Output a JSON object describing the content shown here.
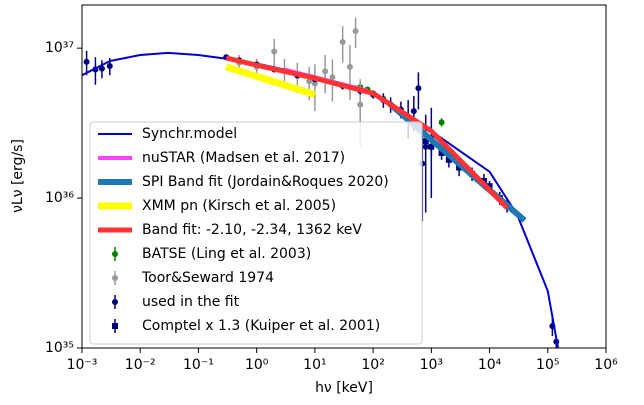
{
  "chart_data": {
    "type": "line",
    "xlabel": "hν [keV]",
    "ylabel": "νLν [erg/s]",
    "xscale": "log",
    "yscale": "log",
    "xlim": [
      0.001,
      1000000
    ],
    "ylim": [
      1e+35,
      1.94e+37
    ],
    "xticks": [
      {
        "value": 0.001,
        "label": "10⁻³"
      },
      {
        "value": 0.01,
        "label": "10⁻²"
      },
      {
        "value": 0.1,
        "label": "10⁻¹"
      },
      {
        "value": 1,
        "label": "10⁰"
      },
      {
        "value": 10,
        "label": "10¹"
      },
      {
        "value": 100,
        "label": "10²"
      },
      {
        "value": 1000,
        "label": "10³"
      },
      {
        "value": 10000,
        "label": "10⁴"
      },
      {
        "value": 100000,
        "label": "10⁵"
      },
      {
        "value": 1000000,
        "label": "10⁶"
      }
    ],
    "yticks": [
      {
        "value": 1e+35,
        "label": "10³⁵"
      },
      {
        "value": 1e+36,
        "label": "10³⁶"
      },
      {
        "value": 1e+37,
        "label": "10³⁷"
      }
    ],
    "legend": "lower left",
    "series": [
      {
        "name": "Synchr.model",
        "color": "#0000cc",
        "kind": "line",
        "width": 2,
        "x": [
          0.001,
          0.003,
          0.01,
          0.03,
          0.1,
          0.3,
          1,
          10,
          100,
          1000,
          10000,
          30000,
          100000,
          150000
        ],
        "values": [
          6.6e+36,
          8.2e+36,
          9e+36,
          9.3e+36,
          9e+36,
          8.5e+36,
          7.9e+36,
          6.5e+36,
          4.9e+36,
          2.8e+36,
          1.5e+36,
          7.7e+35,
          2.4e+35,
          1e+35
        ]
      },
      {
        "name": "nuSTAR (Madsen et al. 2017)",
        "color": "#ff44ff",
        "kind": "line",
        "width": 4,
        "x": [
          3,
          80
        ],
        "values": [
          7.2e+36,
          5.2e+36
        ]
      },
      {
        "name": "SPI Band fit (Jordain&Roques 2020)",
        "color": "#1f77b4",
        "kind": "line",
        "width": 6,
        "x": [
          200,
          40000
        ],
        "values": [
          4.2e+36,
          7.1e+35
        ]
      },
      {
        "name": "XMM pn (Kirsch et al. 2005)",
        "color": "#ffff00",
        "kind": "line",
        "width": 7,
        "x": [
          0.3,
          10
        ],
        "values": [
          7.5e+36,
          4.9e+36
        ]
      },
      {
        "name": "Band fit: -2.10, -2.34, 1362 keV",
        "color": "#ff3333",
        "kind": "line",
        "width": 5,
        "x": [
          0.3,
          1,
          10,
          100,
          1000,
          20000
        ],
        "values": [
          8.6e+36,
          7.7e+36,
          6.3e+36,
          5e+36,
          2.8e+36,
          8.6e+35
        ]
      },
      {
        "name": "BATSE (Ling et al. 2003)",
        "color": "#008000",
        "kind": "errorbar",
        "marker": "circle",
        "x": [
          30,
          40,
          50,
          60,
          80,
          100,
          150,
          1500
        ],
        "values": [
          5.6e+36,
          5.5e+36,
          5.4e+36,
          5.5e+36,
          5.3e+36,
          5e+36,
          4.6e+36,
          3.2e+36
        ],
        "errors": [
          2e+35,
          2e+35,
          2e+35,
          2e+35,
          2e+35,
          2e+35,
          2e+35,
          2e+35
        ]
      },
      {
        "name": "Toor&Seward 1974",
        "color": "#999999",
        "kind": "errorbar",
        "marker": "circle",
        "x": [
          0.5,
          1,
          2,
          3,
          5,
          8,
          10,
          15,
          20,
          30,
          40,
          50,
          60
        ],
        "values": [
          8e+36,
          7.5e+36,
          9.5e+36,
          7e+36,
          6.5e+36,
          6e+36,
          5.8e+36,
          7e+36,
          6.4e+36,
          1.1e+37,
          7.5e+36,
          1.3e+37,
          4.2e+36
        ],
        "errors": [
          1e+36,
          1e+36,
          2e+36,
          1.5e+36,
          1.5e+36,
          1.5e+36,
          2e+36,
          2e+36,
          2e+36,
          3e+36,
          3e+36,
          3e+36,
          2e+36
        ]
      },
      {
        "name": "used in the fit",
        "color": "#00007a",
        "kind": "errorbar",
        "marker": "circle",
        "x": [
          0.0012,
          0.0017,
          0.0022,
          0.003,
          0.3,
          0.5,
          1,
          2,
          5,
          10,
          30,
          60,
          100,
          150,
          200,
          300,
          400,
          500,
          600,
          700,
          800,
          1000,
          120000,
          140000
        ],
        "values": [
          8.1e+36,
          7.2e+36,
          7.3e+36,
          7.6e+36,
          8.7e+36,
          8.3e+36,
          7.8e+36,
          7.2e+36,
          6.6e+36,
          6.2e+36,
          5.6e+36,
          5.2e+36,
          4.9e+36,
          4.5e+36,
          4.2e+36,
          3.9e+36,
          3.5e+36,
          3.8e+36,
          5.4e+36,
          1.7e+36,
          2.2e+36,
          2.5e+36,
          1.4e+35,
          1.1e+35
        ],
        "errors": [
          1.5e+36,
          1.5e+36,
          1e+36,
          1e+36,
          3e+35,
          3e+35,
          3e+35,
          3e+35,
          3e+35,
          3e+35,
          3e+35,
          3e+35,
          3e+35,
          5e+35,
          5e+35,
          5e+35,
          1e+36,
          1e+36,
          1.5e+36,
          1e+36,
          1.4e+36,
          1.5e+36,
          2e+34,
          1e+34
        ]
      },
      {
        "name": "Comptel x 1.3 (Kuiper et al. 2001)",
        "color": "#00007a",
        "kind": "errorbar",
        "marker": "square",
        "x": [
          800,
          1000,
          1500,
          2000,
          3000,
          5000,
          8000,
          10000,
          15000,
          20000
        ],
        "values": [
          2.4e+36,
          2.2e+36,
          2e+36,
          1.8e+36,
          1.6e+36,
          1.45e+36,
          1.3e+36,
          1.2e+36,
          1e+36,
          9e+35
        ],
        "errors": [
          3e+35,
          3e+35,
          2e+35,
          2e+35,
          2e+35,
          1.5e+35,
          1.5e+35,
          1e+35,
          1e+35,
          1e+35
        ]
      }
    ]
  }
}
